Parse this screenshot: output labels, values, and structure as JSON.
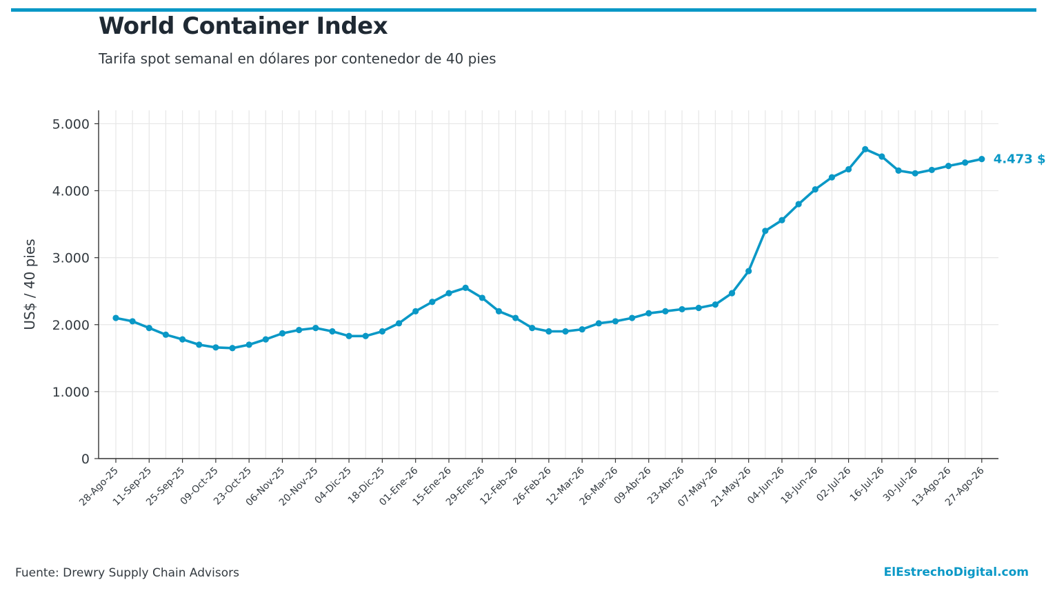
{
  "header": {
    "title": "World Container Index",
    "subtitle": "Tarifa spot semanal en dólares por contenedor de 40 pies"
  },
  "footer": {
    "source": "Fuente: Drewry Supply Chain Advisors",
    "brand": "ElEstrechoDigital.com"
  },
  "colors": {
    "accent": "#0a98c6",
    "grid": "#e6e6e6",
    "text": "#1f2933"
  },
  "chart_data": {
    "type": "line",
    "title": "World Container Index",
    "subtitle": "Tarifa spot semanal en dólares por contenedor de 40 pies",
    "xlabel": "",
    "ylabel": "US$ / 40 pies",
    "ylim": [
      0,
      5200
    ],
    "yticks": [
      0,
      1000,
      2000,
      3000,
      4000,
      5000
    ],
    "ytick_labels": [
      "0",
      "1.000",
      "2.000",
      "3.000",
      "4.000",
      "5.000"
    ],
    "x_tick_labels": [
      "28-Ago-25",
      "11-Sep-25",
      "25-Sep-25",
      "09-Oct-25",
      "23-Oct-25",
      "06-Nov-25",
      "20-Nov-25",
      "04-Dic-25",
      "18-Dic-25",
      "01-Ene-26",
      "15-Ene-26",
      "29-Ene-26",
      "12-Feb-26",
      "26-Feb-26",
      "12-Mar-26",
      "26-Mar-26",
      "09-Abr-26",
      "23-Abr-26",
      "07-May-26",
      "21-May-26",
      "04-Jun-26",
      "18-Jun-26",
      "02-Jul-26",
      "16-Jul-26",
      "30-Jul-26",
      "13-Ago-26",
      "27-Ago-26"
    ],
    "grid": true,
    "series": [
      {
        "values": [
          2100,
          2050,
          1950,
          1850,
          1780,
          1700,
          1660,
          1650,
          1700,
          1780,
          1870,
          1920,
          1950,
          1900,
          1830,
          1830,
          1900,
          2020,
          2200,
          2340,
          2470,
          2550,
          2400,
          2200,
          2100,
          1950,
          1900,
          1900,
          1930,
          2020,
          2050,
          2100,
          2170,
          2200,
          2230,
          2250,
          2300,
          2470,
          2800,
          3400,
          3560,
          3800,
          4020,
          4200,
          4320,
          4620,
          4510,
          4300,
          4260,
          4310,
          4370,
          4420,
          4473
        ]
      }
    ],
    "end_label": "4.473 $"
  }
}
